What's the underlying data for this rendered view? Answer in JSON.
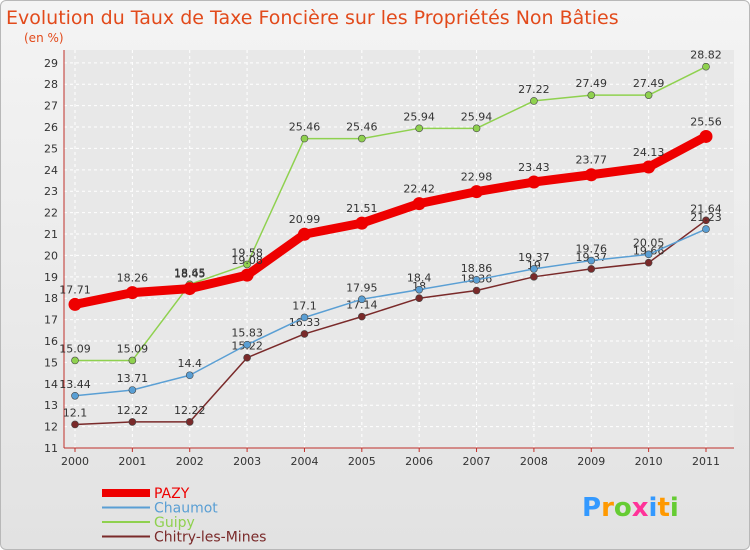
{
  "chart_data": {
    "type": "line",
    "title": "Evolution du Taux de Taxe Foncière sur les Propriétés Non Bâties",
    "subtitle": "(en %)",
    "x": [
      "2000",
      "2001",
      "2002",
      "2003",
      "2004",
      "2005",
      "2006",
      "2007",
      "2008",
      "2009",
      "2010",
      "2011"
    ],
    "y_ticks": [
      "11",
      "12",
      "13",
      "14",
      "15",
      "16",
      "17",
      "18",
      "19",
      "20",
      "21",
      "22",
      "23",
      "24",
      "25",
      "26",
      "27",
      "28",
      "29"
    ],
    "ylim": [
      11,
      29.6
    ],
    "grid": true,
    "legend_position": "bottom-left",
    "series": [
      {
        "name": "PAZY",
        "color": "#ee0000",
        "values": [
          17.71,
          18.26,
          18.45,
          19.08,
          20.99,
          21.51,
          22.42,
          22.98,
          23.43,
          23.77,
          24.13,
          25.56
        ],
        "labels": [
          "17.71",
          "18.26",
          "18.45",
          "19.08",
          "20.99",
          "21.51",
          "22.42",
          "22.98",
          "23.43",
          "23.77",
          "24.13",
          "25.56"
        ]
      },
      {
        "name": "Chaumot",
        "color": "#5a9fd4",
        "values": [
          13.44,
          13.71,
          14.4,
          15.83,
          17.1,
          17.95,
          18.4,
          18.86,
          19.37,
          19.76,
          20.05,
          21.23
        ],
        "labels": [
          "13.44",
          "13.71",
          "14.4",
          "15.83",
          "17.1",
          "17.95",
          "18.4",
          "18.86",
          "19.37",
          "19.76",
          "20.05",
          "21.23"
        ]
      },
      {
        "name": "Guipy",
        "color": "#8fd14f",
        "values": [
          15.09,
          15.09,
          18.65,
          19.58,
          25.46,
          25.46,
          25.94,
          25.94,
          27.22,
          27.49,
          27.49,
          28.82
        ],
        "labels": [
          "15.09",
          "15.09",
          "18.65",
          "19.58",
          "25.46",
          "25.46",
          "25.94",
          "25.94",
          "27.22",
          "27.49",
          "27.49",
          "28.82"
        ]
      },
      {
        "name": "Chitry-les-Mines",
        "color": "#7a2a2a",
        "values": [
          12.1,
          12.22,
          12.22,
          15.22,
          16.33,
          17.14,
          18,
          18.36,
          19,
          19.37,
          19.66,
          21.64
        ],
        "labels": [
          "12.1",
          "12.22",
          "12.22",
          "15.22",
          "16.33",
          "17.14",
          "18",
          "18.36",
          "19",
          "19.37",
          "19.66",
          "21.64"
        ]
      }
    ]
  },
  "logo": {
    "text": "Proxiti",
    "letters": [
      "P",
      "r",
      "o",
      "x",
      "i",
      "t",
      "i"
    ],
    "colors": [
      "#3399ff",
      "#ff9900",
      "#66cc33",
      "#ff3399",
      "#3399ff",
      "#ff9900",
      "#66cc33"
    ]
  }
}
